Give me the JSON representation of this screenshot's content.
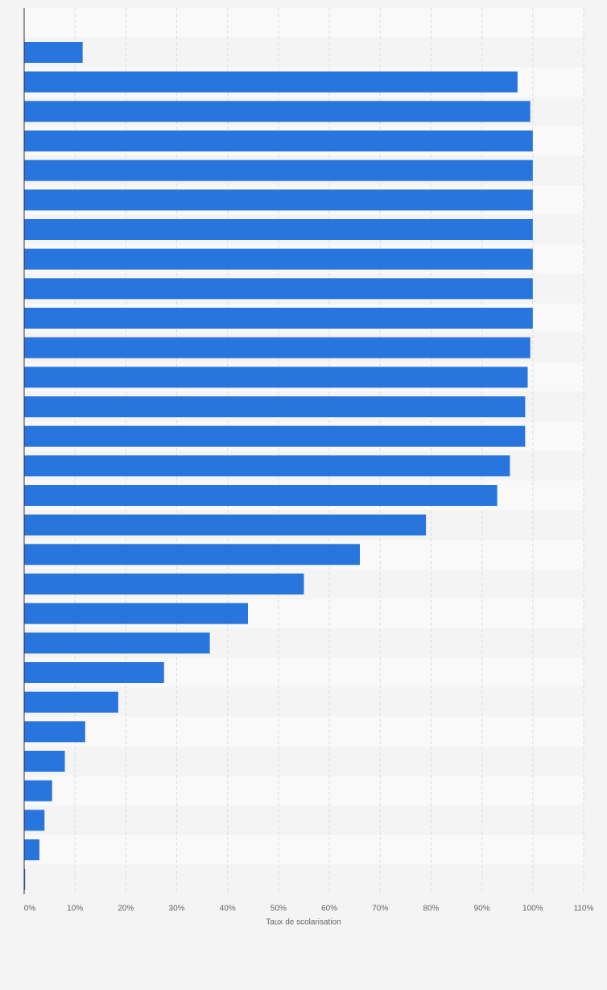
{
  "chart_data": {
    "type": "bar",
    "orientation": "horizontal",
    "color": "#2876dd",
    "grid": true,
    "xlabel": "Taux de scolarisation",
    "categories": [
      null,
      null,
      null,
      null,
      null,
      null,
      null,
      null,
      null,
      null,
      null,
      null,
      null,
      null,
      null,
      null,
      null,
      null,
      null,
      null,
      null,
      null,
      null,
      null,
      null,
      null,
      null,
      null,
      null,
      null
    ],
    "values": [
      null,
      11.5,
      97,
      99.5,
      100,
      100,
      100,
      100,
      100,
      100,
      100,
      99.5,
      99,
      98.5,
      98.5,
      95.5,
      93,
      79,
      66,
      55,
      44,
      36.5,
      27.5,
      18.5,
      12,
      8,
      5.5,
      4,
      3,
      0.2
    ],
    "xlim": [
      0,
      110
    ],
    "xticks": [
      {
        "value": 0,
        "label": "0%"
      },
      {
        "value": 10,
        "label": "10%"
      },
      {
        "value": 20,
        "label": "20%"
      },
      {
        "value": 30,
        "label": "30%"
      },
      {
        "value": 40,
        "label": "40%"
      },
      {
        "value": 50,
        "label": "50%"
      },
      {
        "value": 60,
        "label": "60%"
      },
      {
        "value": 70,
        "label": "70%"
      },
      {
        "value": 80,
        "label": "80%"
      },
      {
        "value": 90,
        "label": "90%"
      },
      {
        "value": 100,
        "label": "100%"
      },
      {
        "value": 110,
        "label": "110%"
      }
    ]
  }
}
